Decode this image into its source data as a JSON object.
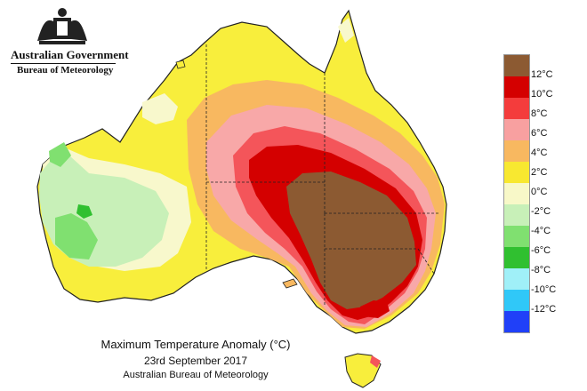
{
  "header": {
    "government": "Australian Government",
    "bureau": "Bureau of Meteorology"
  },
  "title": {
    "line1": "Maximum Temperature Anomaly (°C)",
    "line2": "23rd September 2017",
    "line3": "Australian Bureau of Meteorology"
  },
  "legend": {
    "labels": [
      "12°C",
      "10°C",
      "8°C",
      "6°C",
      "4°C",
      "2°C",
      "0°C",
      "-2°C",
      "-4°C",
      "-6°C",
      "-8°C",
      "-10°C",
      "-12°C"
    ],
    "colors": [
      "#8c5a32",
      "#d40000",
      "#f43c3c",
      "#f8a0a0",
      "#f8b860",
      "#f8e830",
      "#f8f8c8",
      "#c8f0b8",
      "#80e070",
      "#30c030",
      "#a0f0f8",
      "#30c8f8",
      "#2040f8",
      "#3030f8"
    ]
  },
  "colors": {
    "brown": "#8c5a32",
    "red": "#d40000",
    "lightred": "#f4555a",
    "pink": "#f8a8a8",
    "orange": "#f8b860",
    "yellow": "#f8ee3c",
    "cream": "#f8f8cc",
    "lightgreen": "#c8f0b8",
    "green": "#80e070",
    "darkgreen": "#30c030"
  }
}
